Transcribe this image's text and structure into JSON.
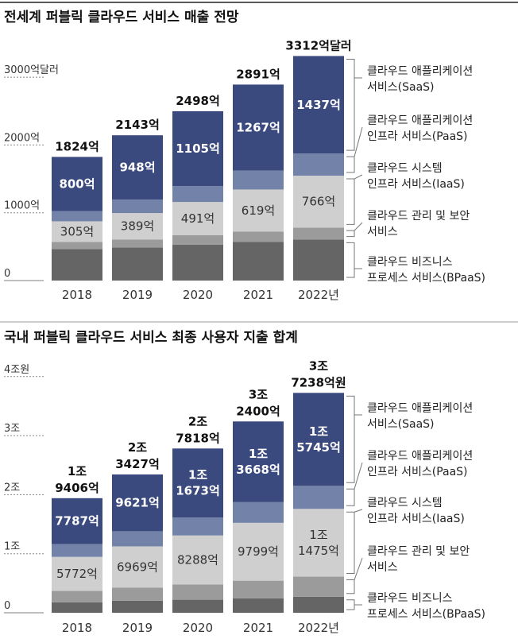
{
  "chart_data": [
    {
      "type": "bar",
      "stacked": true,
      "title": "전세계 퍼블릭 클라우드 서비스 매출 전망",
      "categories": [
        "2018",
        "2019",
        "2020",
        "2021",
        "2022년"
      ],
      "y_ticks": [
        {
          "value": 0,
          "label": "0"
        },
        {
          "value": 1000,
          "label": "1000억"
        },
        {
          "value": 2000,
          "label": "2000억"
        },
        {
          "value": 3000,
          "label": "3000억달러"
        }
      ],
      "ylim": [
        0,
        3312
      ],
      "unit": "억달러",
      "series": [
        {
          "name": "클라우드 비즈니스 프로세스 서비스(BPaaS)",
          "legend_lines": [
            "클라우드 비즈니스",
            "프로세스 서비스(BPaaS)"
          ],
          "color": "#656565",
          "values": [
            464,
            489,
            528,
            572,
            605
          ],
          "labels": null
        },
        {
          "name": "클라우드 관리 및 보안 서비스",
          "legend_lines": [
            "클라우드 관리 및 보안",
            "서비스"
          ],
          "color": "#9b9b9b",
          "values": [
            105,
            117,
            140,
            152,
            176
          ],
          "labels": null
        },
        {
          "name": "클라우드 시스템 인프라 서비스(IaaS)",
          "legend_lines": [
            "클라우드 시스템",
            "인프라 서비스(IaaS)"
          ],
          "color": "#cfcfcf",
          "values": [
            305,
            389,
            491,
            619,
            766
          ],
          "labels": [
            [
              "305억"
            ],
            [
              "389억"
            ],
            [
              "491억"
            ],
            [
              "619억"
            ],
            [
              "766억"
            ]
          ]
        },
        {
          "name": "클라우드 애플리케이션 인프라 서비스(PaaS)",
          "legend_lines": [
            "클라우드 애플리케이션",
            "인프라 서비스(PaaS)"
          ],
          "color": "#7282a8",
          "values": [
            150,
            200,
            234,
            281,
            328
          ],
          "labels": null
        },
        {
          "name": "클라우드 애플리케이션 서비스(SaaS)",
          "legend_lines": [
            "클라우드 애플리케이션",
            "서비스(SaaS)"
          ],
          "color": "#3b4a7e",
          "values": [
            800,
            948,
            1105,
            1267,
            1437
          ],
          "labels": [
            [
              "800억"
            ],
            [
              "948억"
            ],
            [
              "1105억"
            ],
            [
              "1267억"
            ],
            [
              "1437억"
            ]
          ]
        }
      ],
      "totals": [
        1824,
        2143,
        2498,
        2891,
        3312
      ],
      "total_labels": [
        [
          "1824억"
        ],
        [
          "2143억"
        ],
        [
          "2498억"
        ],
        [
          "2891억"
        ],
        [
          "3312억달러"
        ]
      ],
      "grid": "dotted at ticks",
      "legend": "right"
    },
    {
      "type": "bar",
      "stacked": true,
      "title": "국내 퍼블릭 클라우드 서비스 최종 사용자 지출 합계",
      "categories": [
        "2018",
        "2019",
        "2020",
        "2021",
        "2022년"
      ],
      "y_ticks": [
        {
          "value": 0,
          "label": "0"
        },
        {
          "value": 10000,
          "label": "1조"
        },
        {
          "value": 20000,
          "label": "2조"
        },
        {
          "value": 30000,
          "label": "3조"
        },
        {
          "value": 40000,
          "label": "4조원"
        }
      ],
      "ylim": [
        0,
        40000
      ],
      "unit": "억원",
      "series": [
        {
          "name": "클라우드 비즈니스 프로세스 서비스(BPaaS)",
          "legend_lines": [
            "클라우드 비즈니스",
            "프로세스 서비스(BPaaS)"
          ],
          "color": "#656565",
          "values": [
            1767,
            2037,
            2207,
            2433,
            2718
          ],
          "labels": null
        },
        {
          "name": "클라우드 관리 및 보안 서비스",
          "legend_lines": [
            "클라우드 관리 및 보안",
            "서비스"
          ],
          "color": "#9b9b9b",
          "values": [
            1930,
            2240,
            2600,
            3000,
            3400
          ],
          "labels": null
        },
        {
          "name": "클라우드 시스템 인프라 서비스(IaaS)",
          "legend_lines": [
            "클라우드 시스템",
            "인프라 서비스(IaaS)"
          ],
          "color": "#cfcfcf",
          "values": [
            5772,
            6969,
            8288,
            9799,
            11475
          ],
          "labels": [
            [
              "5772억"
            ],
            [
              "6969억"
            ],
            [
              "8288억"
            ],
            [
              "9799억"
            ],
            [
              "1조",
              "1475억"
            ]
          ]
        },
        {
          "name": "클라우드 애플리케이션 인프라 서비스(PaaS)",
          "legend_lines": [
            "클라우드 애플리케이션",
            "인프라 서비스(PaaS)"
          ],
          "color": "#7282a8",
          "values": [
            2150,
            2560,
            3050,
            3500,
            3900
          ],
          "labels": null
        },
        {
          "name": "클라우드 애플리케이션 서비스(SaaS)",
          "legend_lines": [
            "클라우드 애플리케이션",
            "서비스(SaaS)"
          ],
          "color": "#3b4a7e",
          "values": [
            7787,
            9621,
            11673,
            13668,
            15745
          ],
          "labels": [
            [
              "7787억"
            ],
            [
              "9621억"
            ],
            [
              "1조",
              "1673억"
            ],
            [
              "1조",
              "3668억"
            ],
            [
              "1조",
              "5745억"
            ]
          ]
        }
      ],
      "totals": [
        19406,
        23427,
        27818,
        32400,
        37238
      ],
      "total_labels": [
        [
          "1조",
          "9406억"
        ],
        [
          "2조",
          "3427억"
        ],
        [
          "2조",
          "7818억"
        ],
        [
          "3조",
          "2400억"
        ],
        [
          "3조",
          "7238억원"
        ]
      ],
      "grid": "dotted at ticks",
      "legend": "right"
    }
  ]
}
